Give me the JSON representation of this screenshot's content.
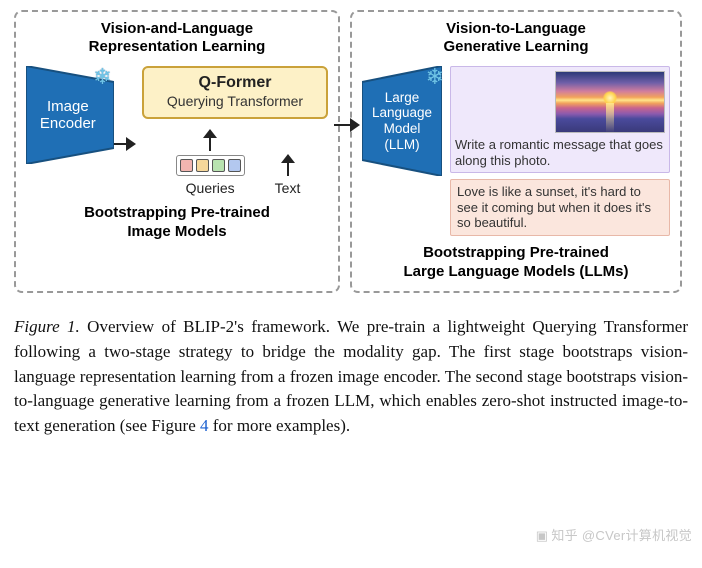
{
  "figure": {
    "type": "flowchart",
    "background_color": "#ffffff",
    "left_stage": {
      "title": "Vision-and-Language\nRepresentation Learning",
      "bottom": "Bootstrapping Pre-trained\nImage Models",
      "encoder": {
        "label": "Image\nEncoder",
        "fill": "#1f6fb5",
        "stroke": "#17507f",
        "text_color": "#ffffff",
        "frozen_icon": "snowflake"
      },
      "qformer": {
        "title": "Q-Former",
        "subtitle": "Querying Transformer",
        "fill": "#fdf1c7",
        "stroke": "#caa23a"
      },
      "queries_label": "Queries",
      "text_label": "Text",
      "query_token_colors": [
        "#f2b5b0",
        "#f6d79a",
        "#b8e3b0",
        "#b3c8ef"
      ],
      "token_border": "#6c6c6c"
    },
    "right_stage": {
      "title": "Vision-to-Language\nGenerative Learning",
      "bottom": "Bootstrapping Pre-trained\nLarge Language Models (LLMs)",
      "llm": {
        "label": "Large\nLanguage\nModel\n(LLM)",
        "fill": "#1f6fb5",
        "stroke": "#17507f",
        "text_color": "#ffffff",
        "frozen_icon": "snowflake"
      },
      "prompt_box": {
        "bg": "#efe8fb",
        "border": "#c9b8e8",
        "text": "Write a romantic message that goes along this photo."
      },
      "response_box": {
        "bg": "#fbe6dd",
        "border": "#e8b8a8",
        "text": "Love is like a sunset, it's hard to see it coming but when it does it's so beautiful."
      }
    },
    "dashed_border_color": "#999999",
    "arrow_color": "#222222"
  },
  "caption": {
    "label": "Figure 1.",
    "text": "Overview of BLIP-2's framework.  We pre-train a lightweight Querying Transformer following a two-stage strategy to bridge the modality gap. The first stage bootstraps vision-language representation learning from a frozen image encoder. The second stage bootstraps vision-to-language generative learning from a frozen LLM, which enables zero-shot instructed image-to-text generation (see Figure ",
    "link_text": "4",
    "tail": " for more examples)."
  },
  "watermark": "知乎 @CVer计算机视觉"
}
